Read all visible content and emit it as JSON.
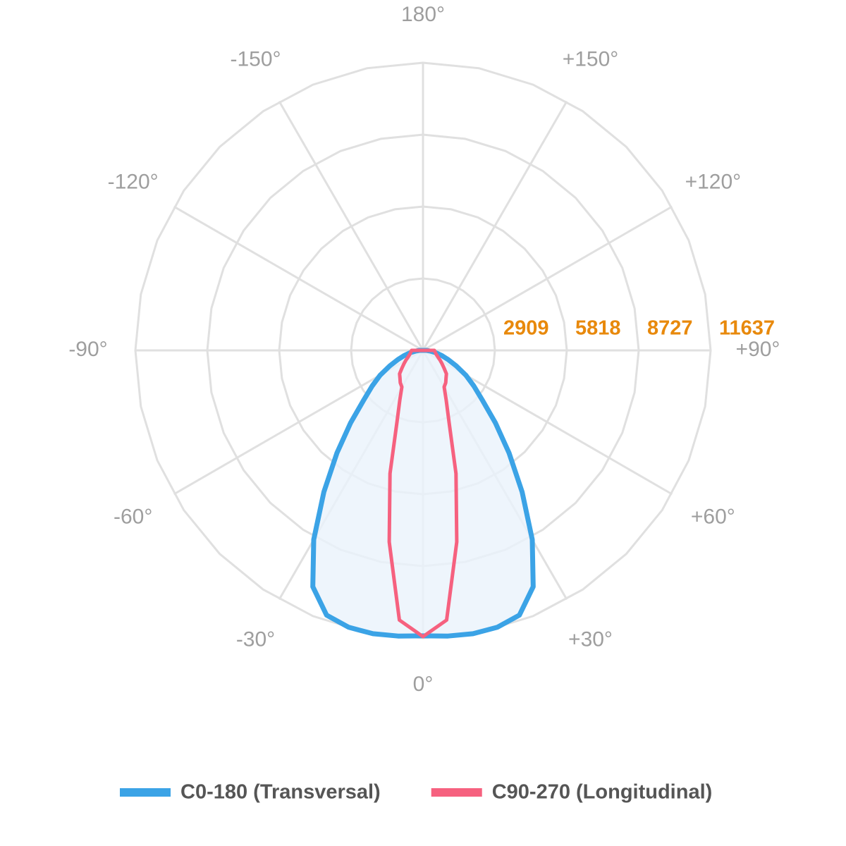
{
  "chart_data": {
    "type": "polar",
    "x": [
      -90,
      -85,
      -80,
      -75,
      -70,
      -65,
      -60,
      -55,
      -50,
      -45,
      -40,
      -35,
      -30,
      -25,
      -20,
      -15,
      -10,
      -5,
      0,
      5,
      10,
      15,
      20,
      25,
      30,
      35,
      40,
      45,
      50,
      55,
      60,
      65,
      70,
      75,
      80,
      85,
      90
    ],
    "series": [
      {
        "name": "C0-180 (Transversal)",
        "color": "#3ba3e6",
        "fill": "#eaf3fb",
        "values": [
          140,
          290,
          510,
          770,
          1080,
          1480,
          2000,
          2510,
          3140,
          4140,
          5420,
          6990,
          8840,
          10550,
          11400,
          11600,
          11640,
          11600,
          11550,
          11600,
          11640,
          11600,
          11400,
          10550,
          8840,
          6990,
          5420,
          4140,
          3140,
          2510,
          2000,
          1480,
          1080,
          770,
          510,
          290,
          140
        ]
      },
      {
        "name": "C90-270 (Longitudinal)",
        "color": "#f6617f",
        "values": [
          460,
          480,
          510,
          540,
          600,
          680,
          800,
          940,
          1110,
          1340,
          1450,
          1600,
          1710,
          2220,
          3080,
          5160,
          7870,
          10950,
          11580,
          10950,
          7870,
          5160,
          3080,
          2220,
          1710,
          1600,
          1450,
          1340,
          1110,
          940,
          800,
          680,
          600,
          540,
          510,
          480,
          460
        ]
      }
    ],
    "rlim": [
      0,
      11637
    ],
    "rticks": [
      2909,
      5818,
      8727,
      11637
    ],
    "xticks": [
      {
        "value": -150,
        "label": "-150°"
      },
      {
        "value": -120,
        "label": "-120°"
      },
      {
        "value": -90,
        "label": "-90°"
      },
      {
        "value": -60,
        "label": "-60°"
      },
      {
        "value": -30,
        "label": "-30°"
      },
      {
        "value": 0,
        "label": "0°"
      },
      {
        "value": 30,
        "label": "+30°"
      },
      {
        "value": 60,
        "label": "+60°"
      },
      {
        "value": 90,
        "label": "+90°"
      },
      {
        "value": 120,
        "label": "+120°"
      },
      {
        "value": 150,
        "label": "+150°"
      },
      {
        "value": 180,
        "label": "180°"
      }
    ],
    "grid": true,
    "legend": "bottom"
  }
}
